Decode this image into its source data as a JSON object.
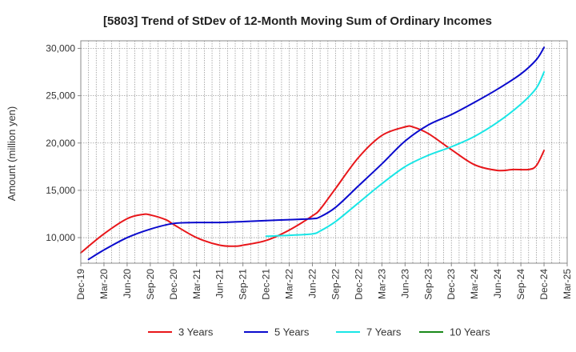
{
  "chart_data": {
    "type": "line",
    "title": "[5803]  Trend of StDev of 12-Month Moving Sum of Ordinary Incomes",
    "ylabel": "Amount (million yen)",
    "xlabel": "",
    "ylim": [
      7300,
      30800
    ],
    "yticks": [
      10000,
      15000,
      20000,
      25000,
      30000
    ],
    "ytick_labels": [
      "10,000",
      "15,000",
      "20,000",
      "25,000",
      "30,000"
    ],
    "x_start": "Dec-19",
    "x_end": "Mar-25",
    "xtick_labels": [
      "Dec-19",
      "Mar-20",
      "Jun-20",
      "Sep-20",
      "Dec-20",
      "Mar-21",
      "Jun-21",
      "Sep-21",
      "Dec-21",
      "Mar-22",
      "Jun-22",
      "Sep-22",
      "Dec-22",
      "Mar-23",
      "Jun-23",
      "Sep-23",
      "Dec-23",
      "Mar-24",
      "Jun-24",
      "Sep-24",
      "Dec-24",
      "Mar-25"
    ],
    "grid": true,
    "legend_position": "bottom",
    "series": [
      {
        "name": "3 Years",
        "color": "#e8161a",
        "points": [
          [
            "Dec-19",
            8400
          ],
          [
            "Mar-20",
            10400
          ],
          [
            "Jun-20",
            12000
          ],
          [
            "Aug-20",
            12450
          ],
          [
            "Sep-20",
            12400
          ],
          [
            "Nov-20",
            11900
          ],
          [
            "Dec-20",
            11400
          ],
          [
            "Mar-21",
            10000
          ],
          [
            "Jun-21",
            9200
          ],
          [
            "Aug-21",
            9100
          ],
          [
            "Sep-21",
            9200
          ],
          [
            "Dec-21",
            9700
          ],
          [
            "Mar-22",
            10800
          ],
          [
            "Jun-22",
            12300
          ],
          [
            "Jul-22",
            13000
          ],
          [
            "Sep-22",
            15200
          ],
          [
            "Dec-22",
            18500
          ],
          [
            "Mar-23",
            20800
          ],
          [
            "Jun-23",
            21700
          ],
          [
            "Jul-23",
            21700
          ],
          [
            "Sep-23",
            21000
          ],
          [
            "Dec-23",
            19300
          ],
          [
            "Mar-24",
            17700
          ],
          [
            "Jun-24",
            17100
          ],
          [
            "Aug-24",
            17200
          ],
          [
            "Oct-24",
            17200
          ],
          [
            "Nov-24",
            17600
          ],
          [
            "Dec-24",
            19200
          ]
        ]
      },
      {
        "name": "5 Years",
        "color": "#0a0acd",
        "points": [
          [
            "Jan-20",
            7700
          ],
          [
            "Mar-20",
            8700
          ],
          [
            "Jun-20",
            10000
          ],
          [
            "Sep-20",
            10900
          ],
          [
            "Dec-20",
            11500
          ],
          [
            "Mar-21",
            11600
          ],
          [
            "Jun-21",
            11600
          ],
          [
            "Sep-21",
            11700
          ],
          [
            "Dec-21",
            11800
          ],
          [
            "Mar-22",
            11900
          ],
          [
            "Jun-22",
            12000
          ],
          [
            "Jul-22",
            12200
          ],
          [
            "Sep-22",
            13200
          ],
          [
            "Dec-22",
            15500
          ],
          [
            "Mar-23",
            17800
          ],
          [
            "Jun-23",
            20200
          ],
          [
            "Sep-23",
            21900
          ],
          [
            "Dec-23",
            23000
          ],
          [
            "Mar-24",
            24300
          ],
          [
            "Jun-24",
            25700
          ],
          [
            "Sep-24",
            27300
          ],
          [
            "Nov-24",
            28800
          ],
          [
            "Dec-24",
            30100
          ]
        ]
      },
      {
        "name": "7 Years",
        "color": "#19e6e6",
        "points": [
          [
            "Dec-21",
            10150
          ],
          [
            "Mar-22",
            10250
          ],
          [
            "Jun-22",
            10400
          ],
          [
            "Jul-22",
            10700
          ],
          [
            "Sep-22",
            11700
          ],
          [
            "Dec-22",
            13700
          ],
          [
            "Mar-23",
            15700
          ],
          [
            "Jun-23",
            17500
          ],
          [
            "Sep-23",
            18700
          ],
          [
            "Dec-23",
            19600
          ],
          [
            "Mar-24",
            20700
          ],
          [
            "Jun-24",
            22200
          ],
          [
            "Sep-24",
            24100
          ],
          [
            "Nov-24",
            25800
          ],
          [
            "Dec-24",
            27500
          ]
        ]
      },
      {
        "name": "10 Years",
        "color": "#1a8a1a",
        "points": []
      }
    ]
  }
}
